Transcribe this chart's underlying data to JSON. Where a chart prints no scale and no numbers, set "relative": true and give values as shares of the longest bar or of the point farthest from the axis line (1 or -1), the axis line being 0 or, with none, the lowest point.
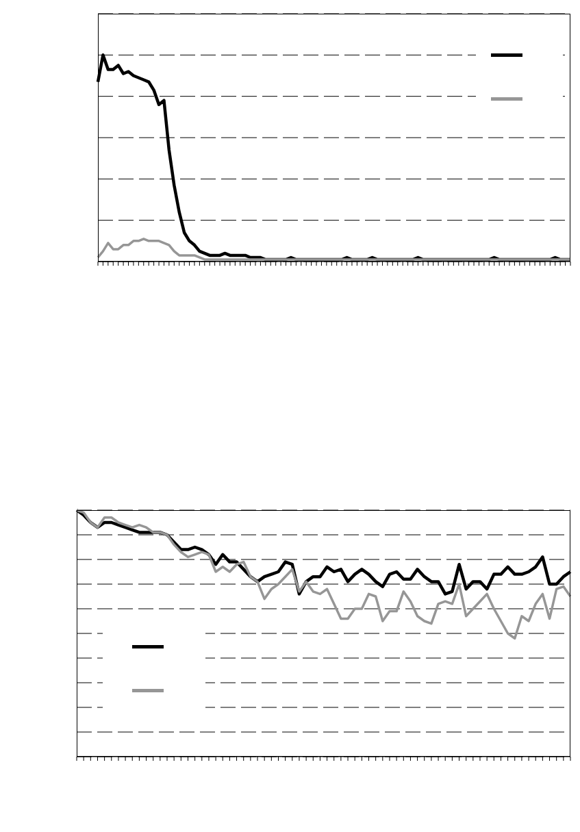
{
  "chart_data": [
    {
      "type": "line",
      "relative": true,
      "grid": "y",
      "categories": [
        null,
        null,
        null,
        null,
        null,
        null,
        null,
        null,
        null,
        null,
        null,
        null,
        null,
        null,
        null,
        null,
        null,
        null,
        null,
        null,
        null,
        null,
        null,
        null,
        null,
        null,
        null,
        null,
        null,
        null,
        null,
        null,
        null,
        null,
        null,
        null,
        null,
        null,
        null,
        null,
        null,
        null,
        null,
        null,
        null,
        null,
        null,
        null,
        null,
        null,
        null,
        null,
        null,
        null,
        null,
        null,
        null,
        null,
        null,
        null,
        null,
        null,
        null,
        null,
        null,
        null,
        null,
        null,
        null,
        null,
        null,
        null,
        null,
        null,
        null,
        null,
        null,
        null,
        null,
        null,
        null,
        null,
        null,
        null,
        null,
        null,
        null,
        null,
        null,
        null,
        null,
        null,
        null,
        null
      ],
      "series": [
        {
          "color": "#000000",
          "values": [
            0.87,
            1,
            0.93,
            0.93,
            0.95,
            0.91,
            0.92,
            0.9,
            0.89,
            0.88,
            0.87,
            0.83,
            0.76,
            0.78,
            0.54,
            0.37,
            0.24,
            0.14,
            0.1,
            0.08,
            0.05,
            0.04,
            0.03,
            0.03,
            0.03,
            0.04,
            0.03,
            0.03,
            0.03,
            0.03,
            0.02,
            0.02,
            0.02,
            0.01,
            0.01,
            0.01,
            0.01,
            0.01,
            0.02,
            0.01,
            0.01,
            0.01,
            0.01,
            0.01,
            0.01,
            0.01,
            0.01,
            0.01,
            0.01,
            0.02,
            0.01,
            0.01,
            0.01,
            0.01,
            0.02,
            0.01,
            0.01,
            0.01,
            0.01,
            0.01,
            0.01,
            0.01,
            0.01,
            0.02,
            0.01,
            0.01,
            0.01,
            0.01,
            0.01,
            0.01,
            0.01,
            0.01,
            0.01,
            0.01,
            0.01,
            0.01,
            0.01,
            0.01,
            0.02,
            0.01,
            0.01,
            0.01,
            0.01,
            0.01,
            0.01,
            0.01,
            0.01,
            0.01,
            0.01,
            0.01,
            0.02,
            0.01,
            0.01,
            0.01
          ]
        },
        {
          "color": "#969696",
          "values": [
            0.02,
            0.05,
            0.09,
            0.06,
            0.06,
            0.08,
            0.08,
            0.1,
            0.1,
            0.11,
            0.1,
            0.1,
            0.1,
            0.09,
            0.08,
            0.05,
            0.03,
            0.03,
            0.03,
            0.03,
            0.02,
            0.01,
            0.01,
            0.01,
            0.01,
            0.01,
            0.01,
            0.01,
            0.01,
            0.01,
            0.01,
            0.01,
            0.01,
            0.01,
            0.01,
            0.01,
            0.01,
            0.01,
            0.01,
            0.01,
            0.01,
            0.01,
            0.01,
            0.01,
            0.01,
            0.01,
            0.01,
            0.01,
            0.01,
            0.01,
            0.01,
            0.01,
            0.01,
            0.01,
            0.01,
            0.01,
            0.01,
            0.01,
            0.01,
            0.01,
            0.01,
            0.01,
            0.01,
            0.01,
            0.01,
            0.01,
            0.01,
            0.01,
            0.01,
            0.01,
            0.01,
            0.01,
            0.01,
            0.01,
            0.01,
            0.01,
            0.01,
            0.01,
            0.01,
            0.01,
            0.01,
            0.01,
            0.01,
            0.01,
            0.01,
            0.01,
            0.01,
            0.01,
            0.01,
            0.01,
            0.01,
            0.01,
            0.01,
            0.01
          ]
        }
      ]
    },
    {
      "type": "line",
      "relative": true,
      "grid": "y",
      "categories": [
        null,
        null,
        null,
        null,
        null,
        null,
        null,
        null,
        null,
        null,
        null,
        null,
        null,
        null,
        null,
        null,
        null,
        null,
        null,
        null,
        null,
        null,
        null,
        null,
        null,
        null,
        null,
        null,
        null,
        null,
        null,
        null,
        null,
        null,
        null,
        null,
        null,
        null,
        null,
        null,
        null,
        null,
        null,
        null,
        null,
        null,
        null,
        null,
        null,
        null,
        null,
        null,
        null,
        null,
        null,
        null,
        null,
        null,
        null,
        null,
        null,
        null,
        null,
        null,
        null,
        null,
        null,
        null,
        null,
        null,
        null,
        null
      ],
      "series": [
        {
          "color": "#000000",
          "values": [
            1,
            0.98,
            0.95,
            0.93,
            0.95,
            0.95,
            0.94,
            0.93,
            0.92,
            0.91,
            0.91,
            0.91,
            0.91,
            0.9,
            0.87,
            0.84,
            0.84,
            0.85,
            0.84,
            0.82,
            0.78,
            0.82,
            0.79,
            0.79,
            0.76,
            0.73,
            0.71,
            0.73,
            0.74,
            0.75,
            0.79,
            0.78,
            0.66,
            0.71,
            0.73,
            0.73,
            0.77,
            0.75,
            0.76,
            0.71,
            0.74,
            0.76,
            0.74,
            0.71,
            0.69,
            0.74,
            0.75,
            0.72,
            0.72,
            0.76,
            0.73,
            0.71,
            0.71,
            0.66,
            0.67,
            0.78,
            0.68,
            0.71,
            0.71,
            0.68,
            0.74,
            0.74,
            0.77,
            0.74,
            0.74,
            0.75,
            0.77,
            0.81,
            0.7,
            0.7,
            0.73,
            0.75
          ]
        },
        {
          "color": "#969696",
          "values": [
            1,
            0.99,
            0.95,
            0.93,
            0.97,
            0.97,
            0.95,
            0.94,
            0.93,
            0.94,
            0.93,
            0.91,
            0.91,
            0.9,
            0.86,
            0.83,
            0.81,
            0.82,
            0.83,
            0.82,
            0.75,
            0.77,
            0.75,
            0.78,
            0.79,
            0.73,
            0.71,
            0.64,
            0.68,
            0.7,
            0.73,
            0.76,
            0.67,
            0.71,
            0.67,
            0.66,
            0.68,
            0.62,
            0.56,
            0.56,
            0.6,
            0.6,
            0.66,
            0.65,
            0.55,
            0.59,
            0.59,
            0.67,
            0.63,
            0.57,
            0.55,
            0.54,
            0.62,
            0.63,
            0.62,
            0.7,
            0.57,
            0.6,
            0.63,
            0.66,
            0.6,
            0.55,
            0.5,
            0.48,
            0.57,
            0.55,
            0.62,
            0.66,
            0.56,
            0.68,
            0.69,
            0.65
          ]
        }
      ]
    }
  ]
}
